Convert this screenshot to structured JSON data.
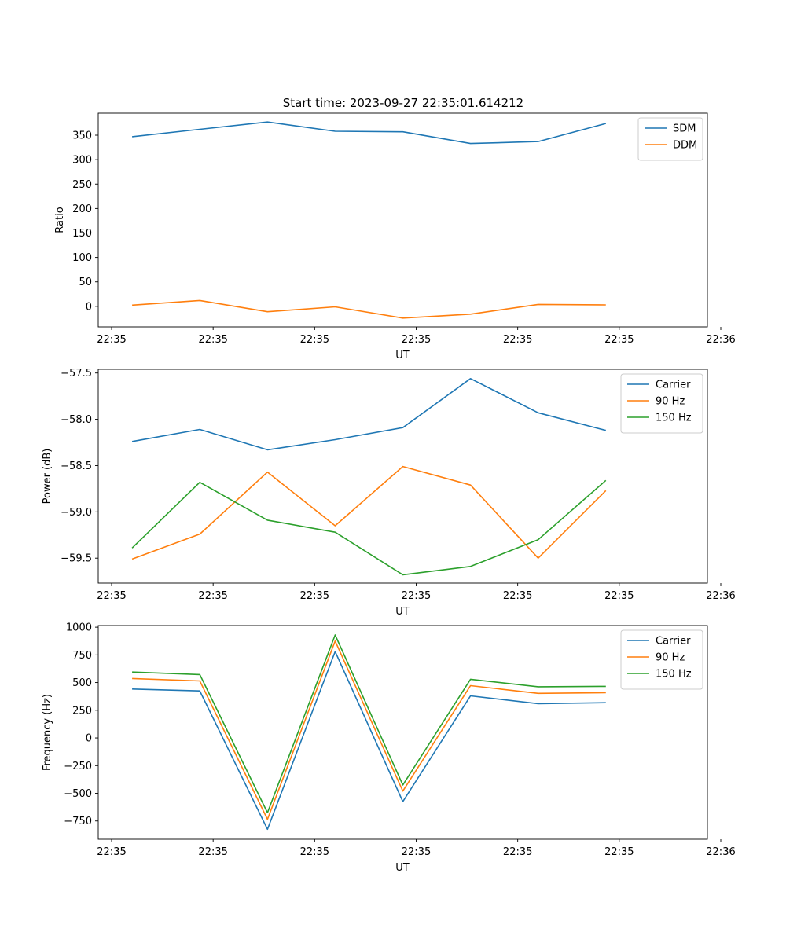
{
  "figure_title": "Start time: 2023-09-27 22:35:01.614212",
  "colors": {
    "c0": "#1f77b4",
    "c1": "#ff7f0e",
    "c2": "#2ca02c"
  },
  "chart_data": [
    {
      "type": "line",
      "xlabel": "UT",
      "ylabel": "Ratio",
      "x_ticks": [
        "22:35",
        "22:35",
        "22:35",
        "22:35",
        "22:35",
        "22:35",
        "22:35"
      ],
      "x_ticks_end": "22:36",
      "y_ticks": [
        "0",
        "50",
        "100",
        "150",
        "200",
        "250",
        "300",
        "350"
      ],
      "ylim": [
        -42,
        395
      ],
      "series": [
        {
          "name": "SDM",
          "values": [
            347,
            362,
            377,
            358,
            357,
            333,
            337,
            374
          ]
        },
        {
          "name": "DDM",
          "values": [
            2.5,
            12,
            -11,
            -1,
            -24,
            -16,
            4,
            3
          ]
        }
      ]
    },
    {
      "type": "line",
      "xlabel": "UT",
      "ylabel": "Power (dB)",
      "x_ticks": [
        "22:35",
        "22:35",
        "22:35",
        "22:35",
        "22:35",
        "22:35",
        "22:35"
      ],
      "x_ticks_end": "22:36",
      "y_ticks": [
        "−59.5",
        "−59.0",
        "−58.5",
        "−58.0",
        "−57.5"
      ],
      "ylim": [
        -59.77,
        -57.46
      ],
      "series": [
        {
          "name": "Carrier",
          "values": [
            -58.24,
            -58.11,
            -58.33,
            -58.22,
            -58.09,
            -57.56,
            -57.93,
            -58.12
          ]
        },
        {
          "name": "90 Hz",
          "values": [
            -59.51,
            -59.24,
            -58.57,
            -59.15,
            -58.51,
            -58.71,
            -59.5,
            -58.77
          ]
        },
        {
          "name": "150 Hz",
          "values": [
            -59.39,
            -58.68,
            -59.09,
            -59.22,
            -59.68,
            -59.59,
            -59.3,
            -58.66
          ]
        }
      ]
    },
    {
      "type": "line",
      "xlabel": "UT",
      "ylabel": "Frequency (Hz)",
      "x_ticks": [
        "22:35",
        "22:35",
        "22:35",
        "22:35",
        "22:35",
        "22:35",
        "22:35"
      ],
      "x_ticks_end": "22:36",
      "y_ticks": [
        "−750",
        "−500",
        "−250",
        "0",
        "250",
        "500",
        "750",
        "1000"
      ],
      "ylim": [
        -915,
        1015
      ],
      "series": [
        {
          "name": "Carrier",
          "values": [
            442,
            425,
            -825,
            780,
            -575,
            380,
            310,
            318
          ]
        },
        {
          "name": "90 Hz",
          "values": [
            537,
            515,
            -735,
            875,
            -480,
            472,
            403,
            408
          ]
        },
        {
          "name": "150 Hz",
          "values": [
            595,
            572,
            -675,
            930,
            -425,
            530,
            462,
            466
          ]
        }
      ]
    }
  ]
}
